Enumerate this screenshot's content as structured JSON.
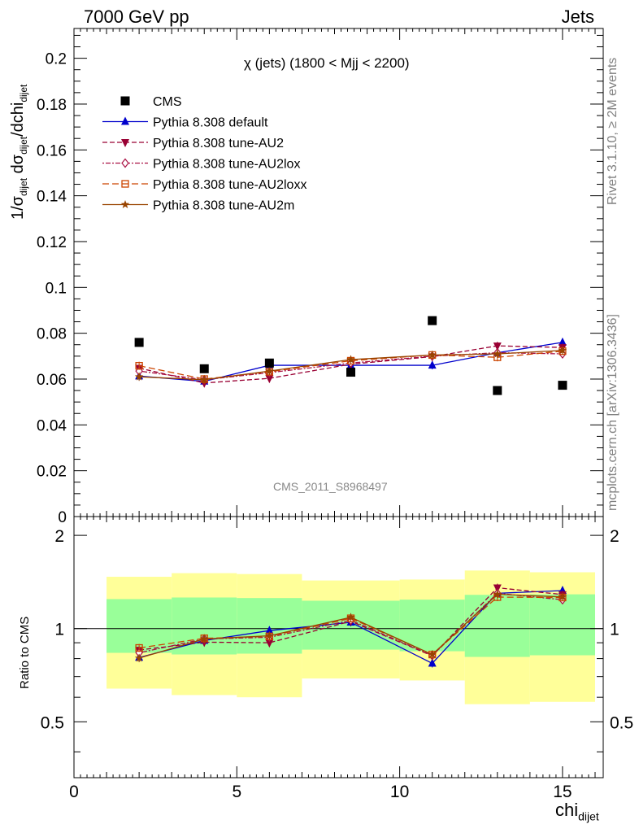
{
  "header": {
    "left": "7000 GeV pp",
    "right": "Jets"
  },
  "side_labels": {
    "rivet": "Rivet 3.1.10, ≥ 2M events",
    "mcplots": "mcplots.cern.ch [arXiv:1306.3436]"
  },
  "chart_data": {
    "type": "scatter",
    "title": "χ (jets) (1800 < Mjj < 2200)",
    "watermark": "CMS_2011_S8968497",
    "xlabel": "chi",
    "xlabel_sub": "dijet",
    "ylabel_main": "1/σ_dijet dσ_dijet/dchi_dijet",
    "ylabel_ratio": "Ratio to CMS",
    "xlim": [
      0,
      16.25
    ],
    "ylim_main": [
      0,
      0.213
    ],
    "ylim_ratio": [
      0.33,
      2.3
    ],
    "x_ticks": [
      0,
      5,
      10,
      15
    ],
    "y_ticks_main": [
      "0",
      "0.02",
      "0.04",
      "0.06",
      "0.08",
      "0.1",
      "0.12",
      "0.14",
      "0.16",
      "0.18",
      "0.2"
    ],
    "y_ticks_ratio": [
      "0.5",
      "1",
      "2"
    ],
    "legend_position": "top-left",
    "x": [
      2,
      4,
      6,
      8.5,
      11,
      13,
      15
    ],
    "data": {
      "name": "CMS",
      "color": "#000000",
      "values": [
        0.076,
        0.0645,
        0.067,
        0.063,
        0.0855,
        0.055,
        0.0573
      ]
    },
    "series": [
      {
        "name": "Pythia 8.308 default",
        "color": "#0000cc",
        "marker": "triangle-up",
        "dash": "",
        "values": [
          0.0613,
          0.059,
          0.066,
          0.066,
          0.066,
          0.0715,
          0.076
        ]
      },
      {
        "name": "Pythia 8.308 tune-AU2",
        "color": "#990033",
        "marker": "triangle-down",
        "dash": "6,3",
        "values": [
          0.0648,
          0.0583,
          0.0603,
          0.0665,
          0.0698,
          0.0745,
          0.0738
        ]
      },
      {
        "name": "Pythia 8.308 tune-AU2lox",
        "color": "#aa1144",
        "marker": "diamond",
        "dash": "2,2,6,2",
        "values": [
          0.0635,
          0.0597,
          0.0628,
          0.067,
          0.07,
          0.0715,
          0.071
        ]
      },
      {
        "name": "Pythia 8.308 tune-AU2loxx",
        "color": "#cc4400",
        "marker": "square-open",
        "dash": "8,4",
        "values": [
          0.0658,
          0.06,
          0.0632,
          0.068,
          0.0705,
          0.0695,
          0.0722
        ]
      },
      {
        "name": "Pythia 8.308 tune-AU2m",
        "color": "#994400",
        "marker": "star",
        "dash": "",
        "values": [
          0.061,
          0.0597,
          0.0635,
          0.0685,
          0.0705,
          0.071,
          0.0725
        ]
      }
    ],
    "uncertainty_bins": {
      "edges": [
        1,
        3,
        5,
        7,
        10,
        12,
        14,
        16
      ],
      "inner": [
        [
          0.835,
          1.245
        ],
        [
          0.825,
          1.26
        ],
        [
          0.83,
          1.255
        ],
        [
          0.855,
          1.23
        ],
        [
          0.845,
          1.24
        ],
        [
          0.81,
          1.285
        ],
        [
          0.82,
          1.29
        ]
      ],
      "outer": [
        [
          0.64,
          1.47
        ],
        [
          0.61,
          1.51
        ],
        [
          0.6,
          1.5
        ],
        [
          0.69,
          1.43
        ],
        [
          0.68,
          1.44
        ],
        [
          0.57,
          1.54
        ],
        [
          0.58,
          1.52
        ]
      ]
    }
  }
}
